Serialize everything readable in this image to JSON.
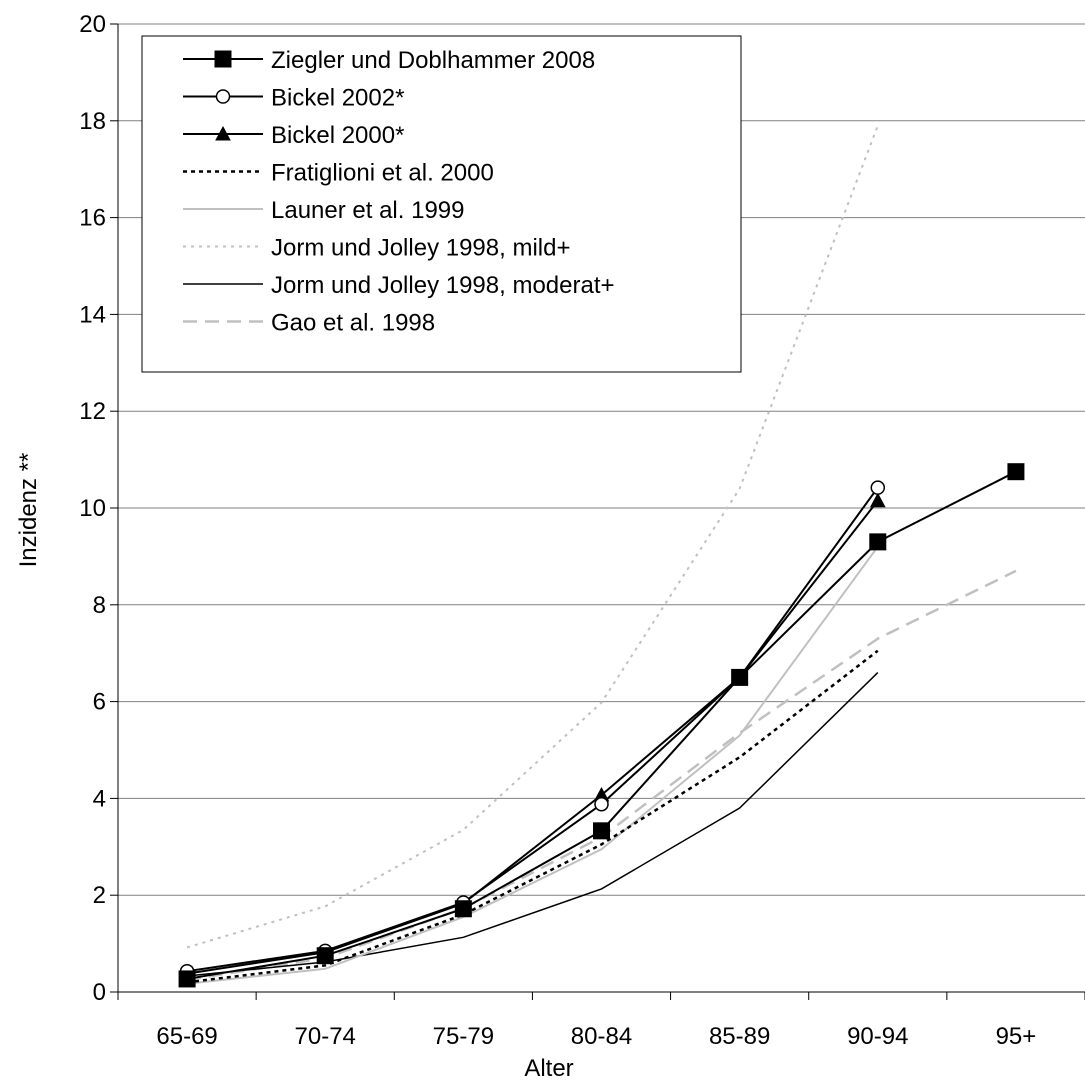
{
  "chart_data": {
    "type": "line",
    "xlabel": "Alter",
    "ylabel": "Inzidenz **",
    "categories": [
      "65-69",
      "70-74",
      "75-79",
      "80-84",
      "85-89",
      "90-94",
      "95+"
    ],
    "ylim": [
      0,
      20
    ],
    "yticks": [
      "0",
      "2",
      "4",
      "6",
      "8",
      "10",
      "12",
      "14",
      "16",
      "18",
      "20"
    ],
    "grid": "horizontal",
    "legend_position": "top-left",
    "series": [
      {
        "name": "Ziegler und Doblhammer 2008",
        "values": [
          0.27,
          0.75,
          1.72,
          3.33,
          6.5,
          9.3,
          10.75
        ],
        "color": "#000000",
        "dash": "",
        "width": 2,
        "marker": "square"
      },
      {
        "name": "Bickel 2002*",
        "values": [
          0.43,
          0.85,
          1.85,
          3.88,
          6.5,
          10.42,
          null
        ],
        "color": "#000000",
        "dash": "",
        "width": 2,
        "marker": "circle"
      },
      {
        "name": "Bickel 2000*",
        "values": [
          0.38,
          0.82,
          1.83,
          4.07,
          6.5,
          10.15,
          null
        ],
        "color": "#000000",
        "dash": "",
        "width": 2,
        "marker": "triangle"
      },
      {
        "name": "Fratiglioni et al. 2000",
        "values": [
          0.2,
          0.55,
          1.6,
          3.05,
          4.85,
          7.05,
          null
        ],
        "color": "#000000",
        "dash": "4,4",
        "width": 2.5,
        "marker": "none"
      },
      {
        "name": "Launer et al. 1999",
        "values": [
          0.17,
          0.48,
          1.55,
          2.95,
          5.3,
          9.2,
          null
        ],
        "color": "#c0c0c0",
        "dash": "",
        "width": 2,
        "marker": "none"
      },
      {
        "name": "Jorm und Jolley 1998, mild+",
        "values": [
          0.92,
          1.77,
          3.35,
          5.98,
          10.4,
          17.9,
          null
        ],
        "color": "#c0c0c0",
        "dash": "3,5",
        "width": 2,
        "marker": "none"
      },
      {
        "name": "Jorm und Jolley 1998, moderat+",
        "values": [
          0.33,
          0.62,
          1.13,
          2.13,
          3.8,
          6.6,
          null
        ],
        "color": "#000000",
        "dash": "",
        "width": 1.5,
        "marker": "none"
      },
      {
        "name": "Gao et al. 1998",
        "values": [
          0.25,
          0.7,
          1.73,
          3.2,
          5.35,
          7.3,
          8.7
        ],
        "color": "#c0c0c0",
        "dash": "14,8",
        "width": 2.5,
        "marker": "none"
      }
    ]
  }
}
